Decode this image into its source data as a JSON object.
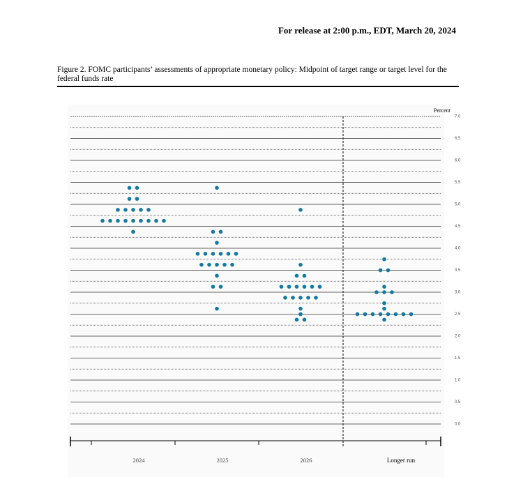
{
  "chart_data": {
    "type": "dot_plot",
    "release": "For release at 2:00 p.m., EDT, March 20, 2024",
    "title": "Figure 2.  FOMC participants’ assessments of appropriate monetary policy:  Midpoint of target range or target level for the federal funds rate",
    "ylabel": "Percent",
    "color": "#1479a0",
    "categories": [
      "2024",
      "2025",
      "2026",
      "Longer run"
    ],
    "ylim": [
      0,
      7
    ],
    "yticks": [
      {
        "value": 0,
        "label": "0.0"
      },
      {
        "value": 0.5,
        "label": "0.5"
      },
      {
        "value": 1,
        "label": "1.0"
      },
      {
        "value": 1.5,
        "label": "1.5"
      },
      {
        "value": 2,
        "label": "2.0"
      },
      {
        "value": 2.5,
        "label": "2.5"
      },
      {
        "value": 3,
        "label": "3.0"
      },
      {
        "value": 3.5,
        "label": "3.5"
      },
      {
        "value": 4,
        "label": "4.0"
      },
      {
        "value": 4.5,
        "label": "4.5"
      },
      {
        "value": 5,
        "label": "5.0"
      },
      {
        "value": 5.5,
        "label": "5.5"
      },
      {
        "value": 6,
        "label": "6.0"
      },
      {
        "value": 6.5,
        "label": "6.5"
      },
      {
        "value": 7,
        "label": "7.0"
      }
    ],
    "grid": true,
    "dots": [
      [
        {
          "rate": 5.375,
          "count": 2
        },
        {
          "rate": 5.125,
          "count": 2
        },
        {
          "rate": 4.875,
          "count": 5
        },
        {
          "rate": 4.625,
          "count": 9
        },
        {
          "rate": 4.375,
          "count": 1
        }
      ],
      [
        {
          "rate": 5.375,
          "count": 1
        },
        {
          "rate": 4.375,
          "count": 2
        },
        {
          "rate": 4.125,
          "count": 1
        },
        {
          "rate": 3.875,
          "count": 6
        },
        {
          "rate": 3.625,
          "count": 5
        },
        {
          "rate": 3.375,
          "count": 1
        },
        {
          "rate": 3.125,
          "count": 2
        },
        {
          "rate": 2.625,
          "count": 1
        }
      ],
      [
        {
          "rate": 4.875,
          "count": 1
        },
        {
          "rate": 3.625,
          "count": 1
        },
        {
          "rate": 3.375,
          "count": 2
        },
        {
          "rate": 3.125,
          "count": 6
        },
        {
          "rate": 2.875,
          "count": 5
        },
        {
          "rate": 2.625,
          "count": 1
        },
        {
          "rate": 2.5,
          "count": 1
        },
        {
          "rate": 2.375,
          "count": 2
        }
      ],
      [
        {
          "rate": 3.75,
          "count": 1
        },
        {
          "rate": 3.5,
          "count": 2
        },
        {
          "rate": 3.125,
          "count": 1
        },
        {
          "rate": 3,
          "count": 3
        },
        {
          "rate": 2.75,
          "count": 1
        },
        {
          "rate": 2.625,
          "count": 1
        },
        {
          "rate": 2.5,
          "count": 8
        },
        {
          "rate": 2.375,
          "count": 1
        }
      ]
    ]
  }
}
